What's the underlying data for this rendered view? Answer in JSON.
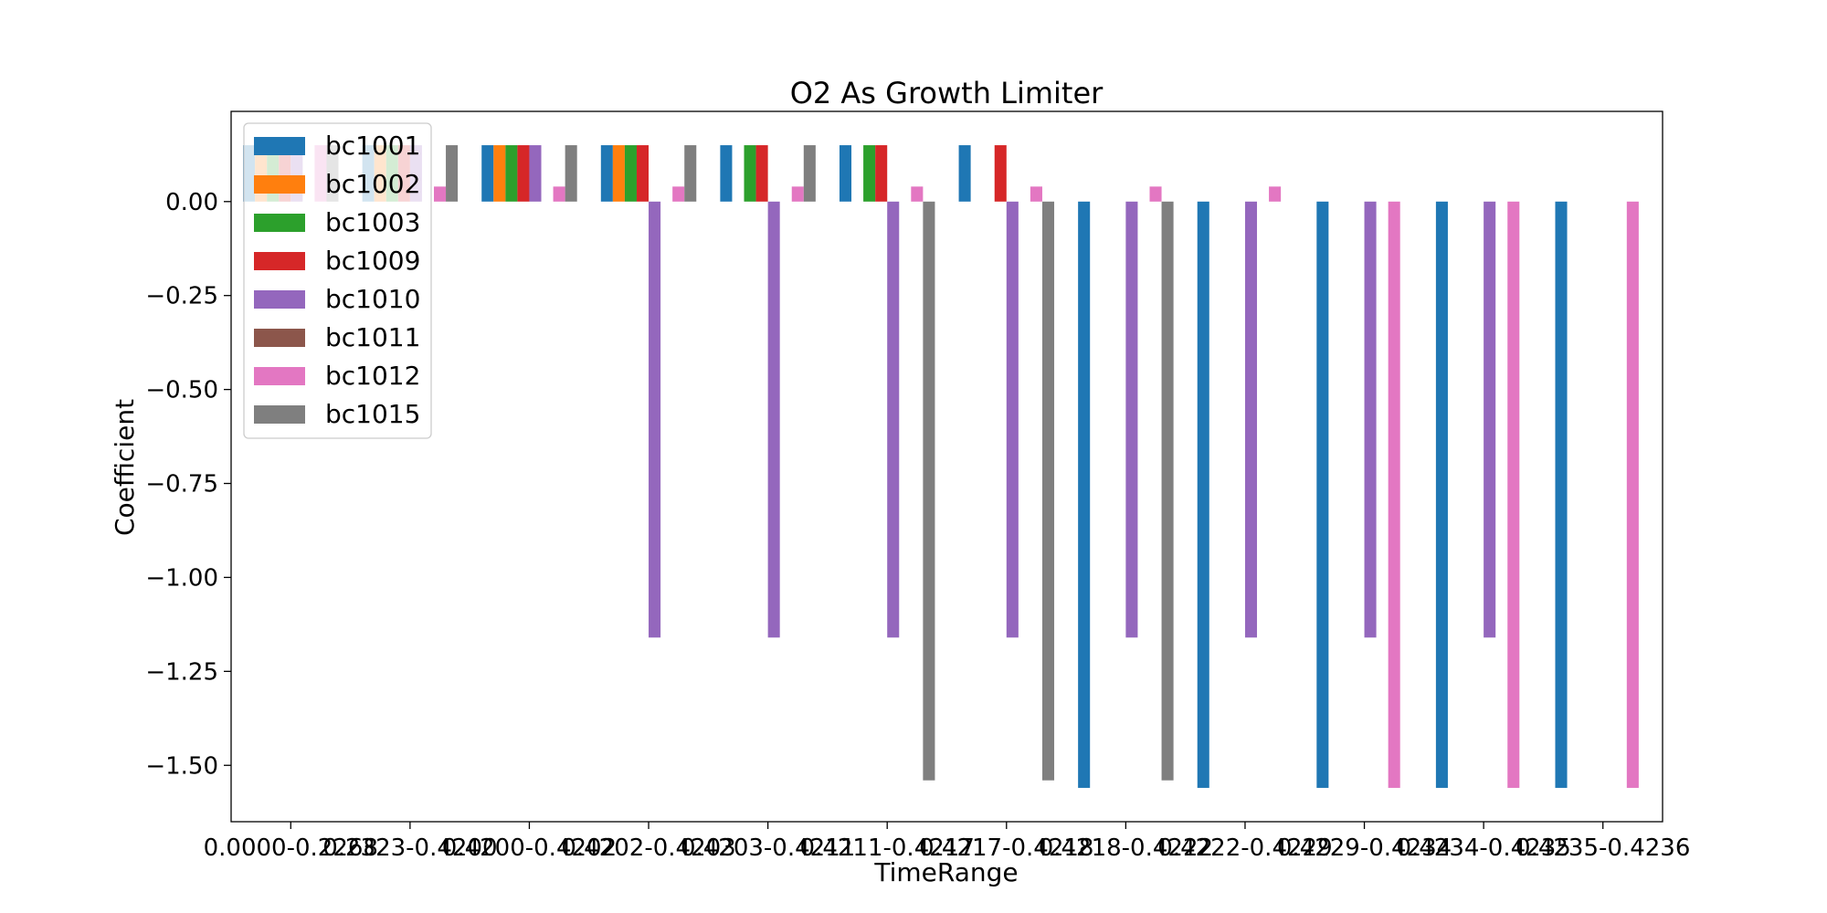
{
  "chart_data": {
    "type": "bar",
    "title": "O2 As Growth Limiter",
    "xlabel": "TimeRange",
    "ylabel": "Coefficient",
    "ylim": [
      -1.65,
      0.24
    ],
    "yticks": [
      0.0,
      -0.25,
      -0.5,
      -0.75,
      -1.0,
      -1.25,
      -1.5
    ],
    "ytick_labels": [
      "0.00",
      "−0.25",
      "−0.50",
      "−0.75",
      "−1.00",
      "−1.25",
      "−1.50"
    ],
    "grid": false,
    "legend_position": "top-left",
    "categories": [
      "0.0000-0.2268",
      "0.2323-0.4200",
      "0.4200-0.4202",
      "0.4202-0.4203",
      "0.4203-0.4211",
      "0.4211-0.4217",
      "0.4217-0.4218",
      "0.4218-0.4222",
      "0.4222-0.4229",
      "0.4229-0.4234",
      "0.4234-0.4235",
      "0.4235-0.4236"
    ],
    "series": [
      {
        "name": "bc1001",
        "color": "#1f77b4",
        "values": [
          0.15,
          0.15,
          0.15,
          0.15,
          0.15,
          0.15,
          0.15,
          -1.56,
          -1.56,
          -1.56,
          -1.56,
          -1.56
        ]
      },
      {
        "name": "bc1002",
        "color": "#ff7f0e",
        "values": [
          0.15,
          0.15,
          0.15,
          0.15,
          null,
          null,
          null,
          null,
          null,
          null,
          null,
          null
        ]
      },
      {
        "name": "bc1003",
        "color": "#2ca02c",
        "values": [
          0.15,
          0.15,
          0.15,
          0.15,
          0.15,
          0.15,
          null,
          null,
          null,
          null,
          null,
          null
        ]
      },
      {
        "name": "bc1009",
        "color": "#d62728",
        "values": [
          0.15,
          0.15,
          0.15,
          0.15,
          0.15,
          0.15,
          0.15,
          null,
          null,
          null,
          null,
          null
        ]
      },
      {
        "name": "bc1010",
        "color": "#9467bd",
        "values": [
          0.15,
          0.15,
          0.15,
          -1.16,
          -1.16,
          -1.16,
          -1.16,
          -1.16,
          -1.16,
          -1.16,
          -1.16,
          null
        ]
      },
      {
        "name": "bc1011",
        "color": "#8c564b",
        "values": [
          null,
          null,
          null,
          null,
          null,
          null,
          null,
          null,
          null,
          null,
          null,
          null
        ]
      },
      {
        "name": "bc1012",
        "color": "#e377c2",
        "values": [
          0.15,
          0.04,
          0.04,
          0.04,
          0.04,
          0.04,
          0.04,
          0.04,
          0.04,
          -1.56,
          -1.56,
          -1.56
        ]
      },
      {
        "name": "bc1015",
        "color": "#7f7f7f",
        "values": [
          0.15,
          0.15,
          0.15,
          0.15,
          0.15,
          -1.54,
          -1.54,
          -1.54,
          null,
          null,
          null,
          null
        ]
      }
    ]
  }
}
